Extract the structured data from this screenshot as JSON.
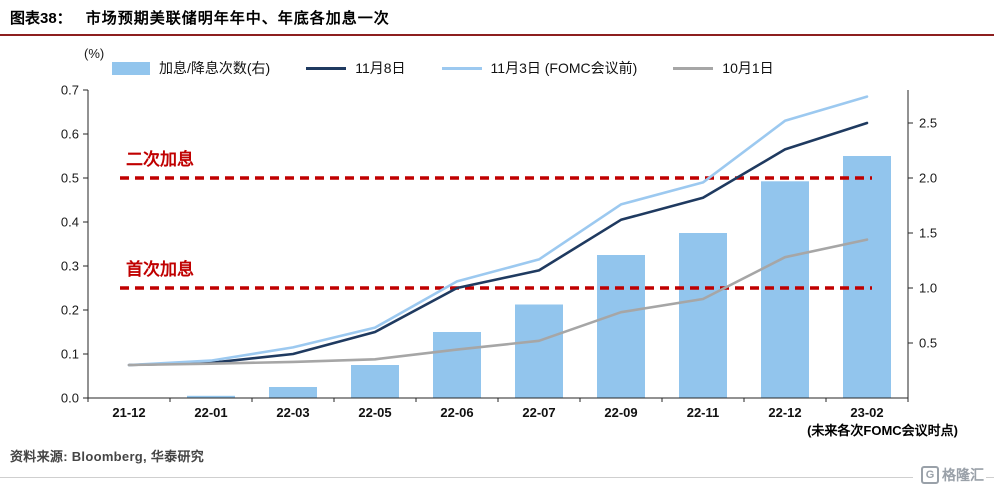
{
  "header": {
    "title_prefix": "图表38：",
    "title": "市场预期美联储明年年中、年底各加息一次"
  },
  "chart_data": {
    "type": "combo-bar-line",
    "title": "市场预期美联储明年年中、年底各加息一次",
    "unit_label": "(%)",
    "categories": [
      "21-12",
      "22-01",
      "22-03",
      "22-05",
      "22-06",
      "22-07",
      "22-09",
      "22-11",
      "22-12",
      "23-02"
    ],
    "bar_series": {
      "name": "加息/降息次数(右)",
      "axis": "right",
      "color": "#92c5ed",
      "values": [
        0,
        0.02,
        0.1,
        0.3,
        0.6,
        0.85,
        1.3,
        1.5,
        1.97,
        2.2
      ]
    },
    "line_series": [
      {
        "name": "11月8日",
        "axis": "left",
        "color": "#1f3a60",
        "values": [
          0.075,
          0.08,
          0.1,
          0.15,
          0.25,
          0.29,
          0.405,
          0.455,
          0.565,
          0.625
        ]
      },
      {
        "name": "11月3日 (FOMC会议前)",
        "axis": "left",
        "color": "#9cc9f0",
        "values": [
          0.075,
          0.085,
          0.115,
          0.16,
          0.265,
          0.315,
          0.44,
          0.49,
          0.63,
          0.685
        ]
      },
      {
        "name": "10月1日",
        "axis": "left",
        "color": "#a6a6a6",
        "values": [
          0.075,
          0.078,
          0.082,
          0.088,
          0.11,
          0.13,
          0.195,
          0.225,
          0.32,
          0.36
        ]
      }
    ],
    "left_axis": {
      "min": 0,
      "max": 0.7,
      "step": 0.1
    },
    "right_axis": {
      "min": 0,
      "max": 2.8,
      "ticks": [
        0.5,
        1.0,
        1.5,
        2.0,
        2.5
      ]
    },
    "reference_lines": [
      {
        "label": "二次加息",
        "value": 0.5,
        "color": "#c00000"
      },
      {
        "label": "首次加息",
        "value": 0.25,
        "color": "#c00000"
      }
    ],
    "x_axis_note": "(未来各次FOMC会议时点)",
    "grid": false,
    "legend_position": "top"
  },
  "footer": {
    "source": "资料来源: Bloomberg, 华泰研究",
    "logo_glyph": "G",
    "logo_text": "格隆汇"
  }
}
